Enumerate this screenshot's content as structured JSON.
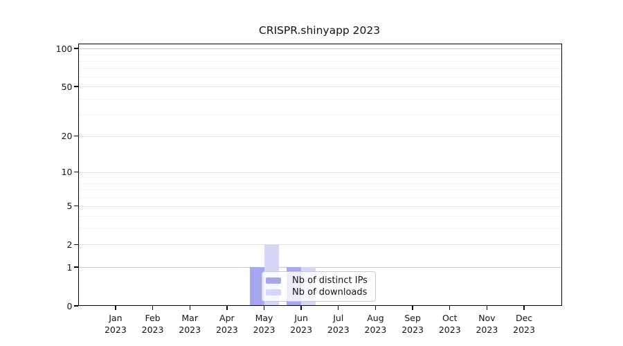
{
  "chart_data": {
    "type": "bar",
    "title": "CRISPR.shinyapp 2023",
    "year": "2023",
    "categories": [
      "Jan",
      "Feb",
      "Mar",
      "Apr",
      "May",
      "Jun",
      "Jul",
      "Aug",
      "Sep",
      "Oct",
      "Nov",
      "Dec"
    ],
    "series": [
      {
        "name": "Nb of distinct IPs",
        "color": "#a7a7ef",
        "values": [
          0,
          0,
          0,
          0,
          1,
          1,
          0,
          0,
          0,
          0,
          0,
          0
        ]
      },
      {
        "name": "Nb of downloads",
        "color": "#d6d6f7",
        "values": [
          0,
          0,
          0,
          0,
          2,
          1,
          0,
          0,
          0,
          0,
          0,
          0
        ]
      }
    ],
    "scale": "log1p",
    "ylim": [
      0,
      110
    ],
    "yticks": [
      0,
      1,
      2,
      5,
      10,
      20,
      50,
      100
    ],
    "minor_gridlines": [
      3,
      4,
      6,
      7,
      8,
      9,
      30,
      40,
      60,
      70,
      80,
      90
    ],
    "emphasized_gridlines": [
      1,
      100
    ],
    "grid": true,
    "legend_position": "lower-center-overlapping-plot",
    "legend_labels": [
      "Nb of distinct IPs",
      "Nb of downloads"
    ]
  }
}
